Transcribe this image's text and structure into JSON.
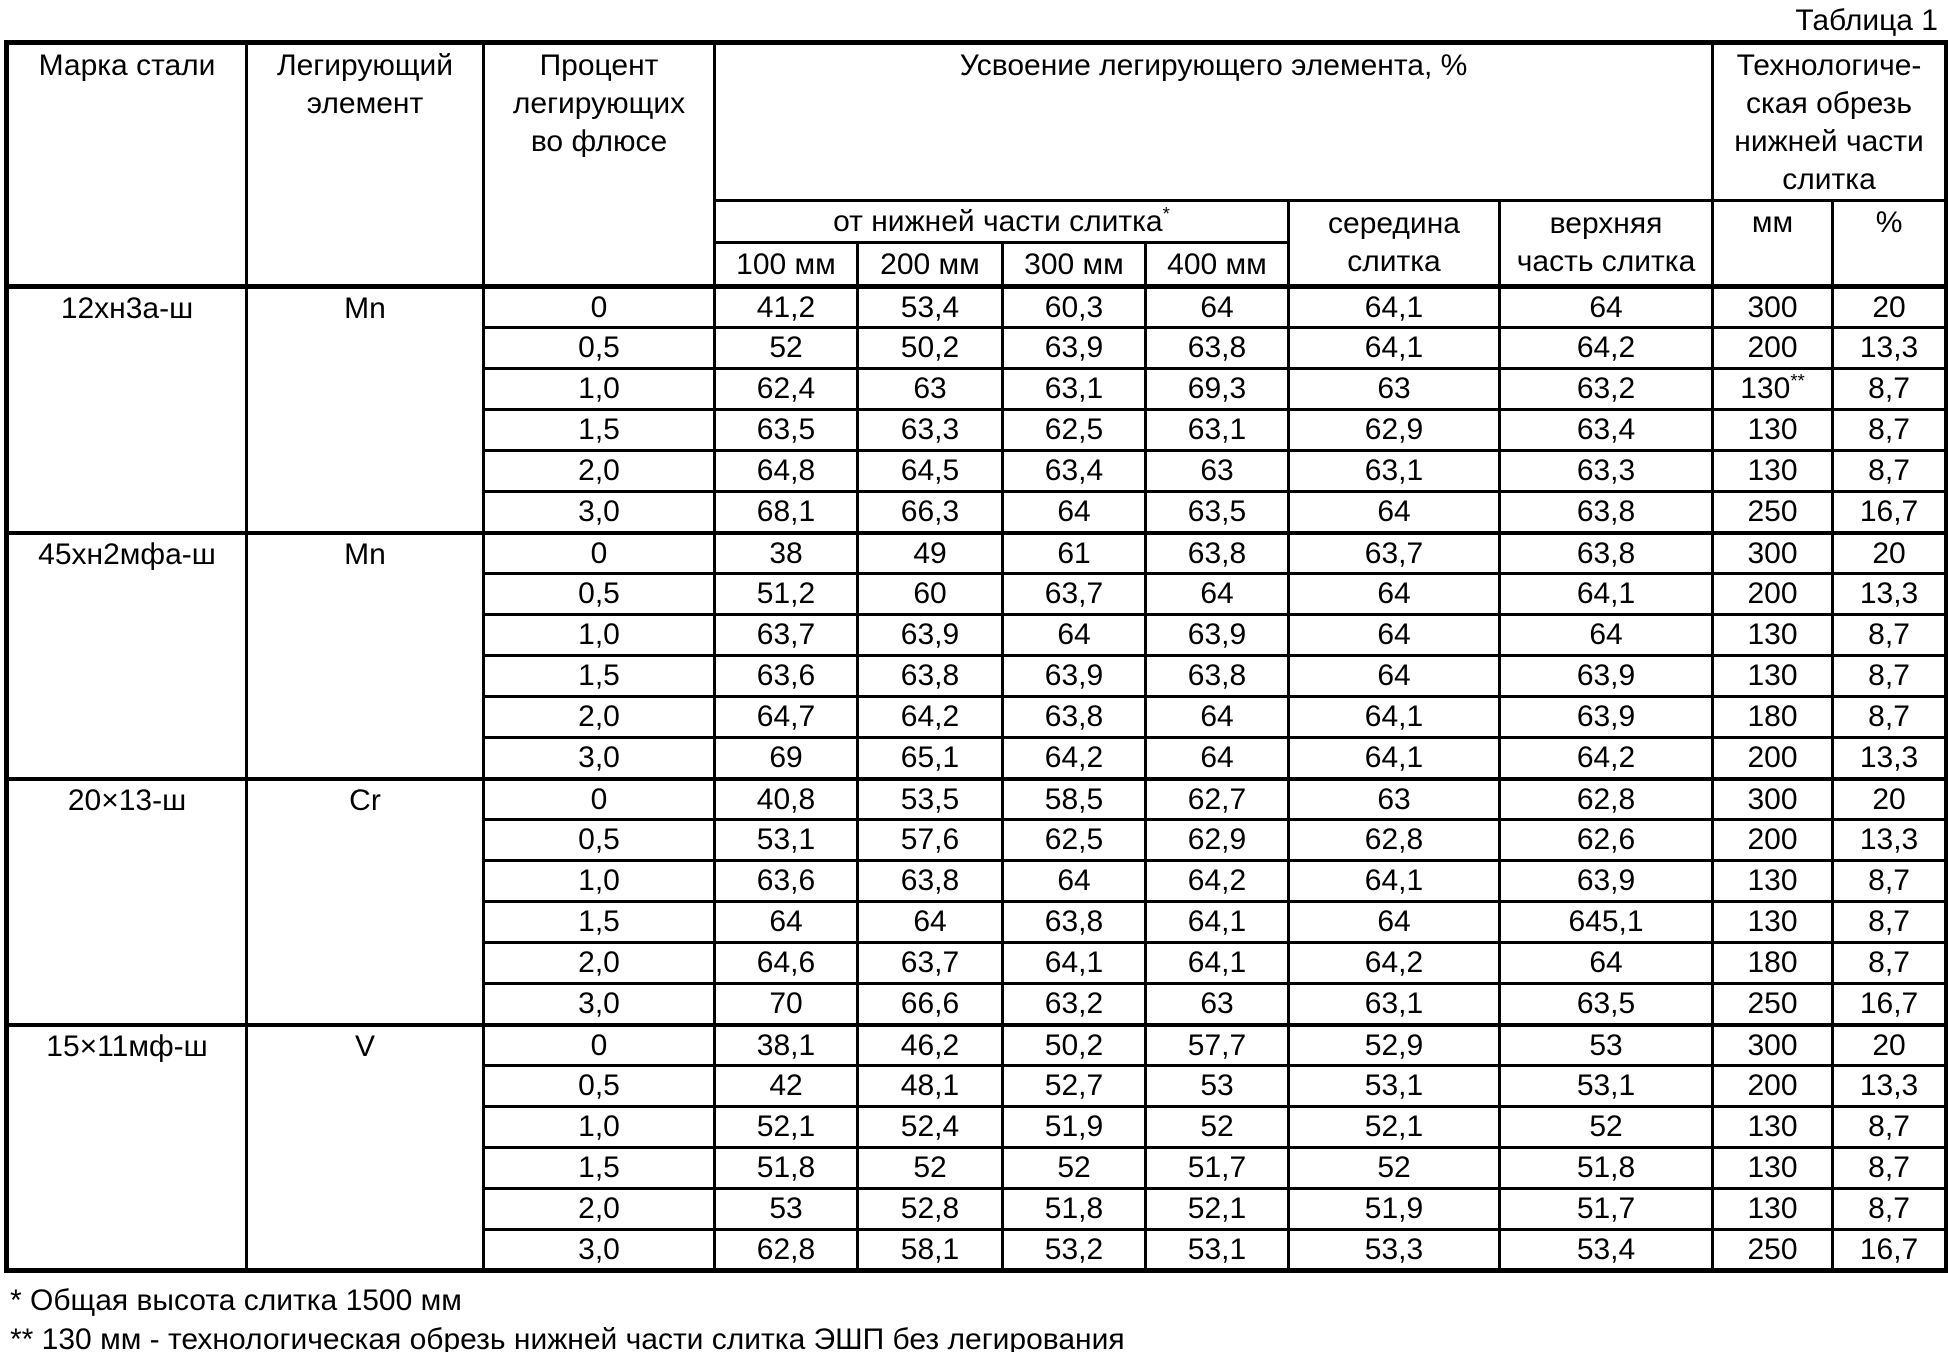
{
  "caption": "Таблица 1",
  "colors": {
    "text": "#000000",
    "background": "#ffffff",
    "border": "#000000"
  },
  "table": {
    "header": {
      "steel_grade": "Марка стали",
      "alloy_element": "Легирующий\nэлемент",
      "flux_percent": "Процент\nлегирующих\nво флюсе",
      "assimilation": "Усвоение легирующего элемента, %",
      "trim": "Технологиче-\nская обрезь\nнижней части\nслитка",
      "from_bottom": "от нижней части слитка",
      "from_bottom_marker": "*",
      "distance_cols": [
        "100 мм",
        "200 мм",
        "300 мм",
        "400 мм"
      ],
      "middle": "середина\nслитка",
      "top": "верхняя\nчасть слитка",
      "trim_mm": "мм",
      "trim_pct": "%"
    },
    "groups": [
      {
        "steel": "12хн3а-ш",
        "element": "Mn",
        "rows": [
          [
            "0",
            "41,2",
            "53,4",
            "60,3",
            "64",
            "64,1",
            "64",
            "300",
            "20"
          ],
          [
            "0,5",
            "52",
            "50,2",
            "63,9",
            "63,8",
            "64,1",
            "64,2",
            "200",
            "13,3"
          ],
          [
            "1,0",
            "62,4",
            "63",
            "63,1",
            "69,3",
            "63",
            "63,2",
            "130**",
            "8,7"
          ],
          [
            "1,5",
            "63,5",
            "63,3",
            "62,5",
            "63,1",
            "62,9",
            "63,4",
            "130",
            "8,7"
          ],
          [
            "2,0",
            "64,8",
            "64,5",
            "63,4",
            "63",
            "63,1",
            "63,3",
            "130",
            "8,7"
          ],
          [
            "3,0",
            "68,1",
            "66,3",
            "64",
            "63,5",
            "64",
            "63,8",
            "250",
            "16,7"
          ]
        ]
      },
      {
        "steel": "45хн2мфа-ш",
        "element": "Mn",
        "rows": [
          [
            "0",
            "38",
            "49",
            "61",
            "63,8",
            "63,7",
            "63,8",
            "300",
            "20"
          ],
          [
            "0,5",
            "51,2",
            "60",
            "63,7",
            "64",
            "64",
            "64,1",
            "200",
            "13,3"
          ],
          [
            "1,0",
            "63,7",
            "63,9",
            "64",
            "63,9",
            "64",
            "64",
            "130",
            "8,7"
          ],
          [
            "1,5",
            "63,6",
            "63,8",
            "63,9",
            "63,8",
            "64",
            "63,9",
            "130",
            "8,7"
          ],
          [
            "2,0",
            "64,7",
            "64,2",
            "63,8",
            "64",
            "64,1",
            "63,9",
            "180",
            "8,7"
          ],
          [
            "3,0",
            "69",
            "65,1",
            "64,2",
            "64",
            "64,1",
            "64,2",
            "200",
            "13,3"
          ]
        ]
      },
      {
        "steel": "20×13-ш",
        "element": "Cr",
        "rows": [
          [
            "0",
            "40,8",
            "53,5",
            "58,5",
            "62,7",
            "63",
            "62,8",
            "300",
            "20"
          ],
          [
            "0,5",
            "53,1",
            "57,6",
            "62,5",
            "62,9",
            "62,8",
            "62,6",
            "200",
            "13,3"
          ],
          [
            "1,0",
            "63,6",
            "63,8",
            "64",
            "64,2",
            "64,1",
            "63,9",
            "130",
            "8,7"
          ],
          [
            "1,5",
            "64",
            "64",
            "63,8",
            "64,1",
            "64",
            "645,1",
            "130",
            "8,7"
          ],
          [
            "2,0",
            "64,6",
            "63,7",
            "64,1",
            "64,1",
            "64,2",
            "64",
            "180",
            "8,7"
          ],
          [
            "3,0",
            "70",
            "66,6",
            "63,2",
            "63",
            "63,1",
            "63,5",
            "250",
            "16,7"
          ]
        ]
      },
      {
        "steel": "15×11мф-ш",
        "element": "V",
        "rows": [
          [
            "0",
            "38,1",
            "46,2",
            "50,2",
            "57,7",
            "52,9",
            "53",
            "300",
            "20"
          ],
          [
            "0,5",
            "42",
            "48,1",
            "52,7",
            "53",
            "53,1",
            "53,1",
            "200",
            "13,3"
          ],
          [
            "1,0",
            "52,1",
            "52,4",
            "51,9",
            "52",
            "52,1",
            "52",
            "130",
            "8,7"
          ],
          [
            "1,5",
            "51,8",
            "52",
            "52",
            "51,7",
            "52",
            "51,8",
            "130",
            "8,7"
          ],
          [
            "2,0",
            "53",
            "52,8",
            "51,8",
            "52,1",
            "51,9",
            "51,7",
            "130",
            "8,7"
          ],
          [
            "3,0",
            "62,8",
            "58,1",
            "53,2",
            "53,1",
            "53,3",
            "53,4",
            "250",
            "16,7"
          ]
        ]
      }
    ]
  },
  "footnotes": [
    "* Общая высота слитка 1500 мм",
    "** 130 мм - технологическая обрезь нижней части слитка ЭШП без легирования"
  ]
}
